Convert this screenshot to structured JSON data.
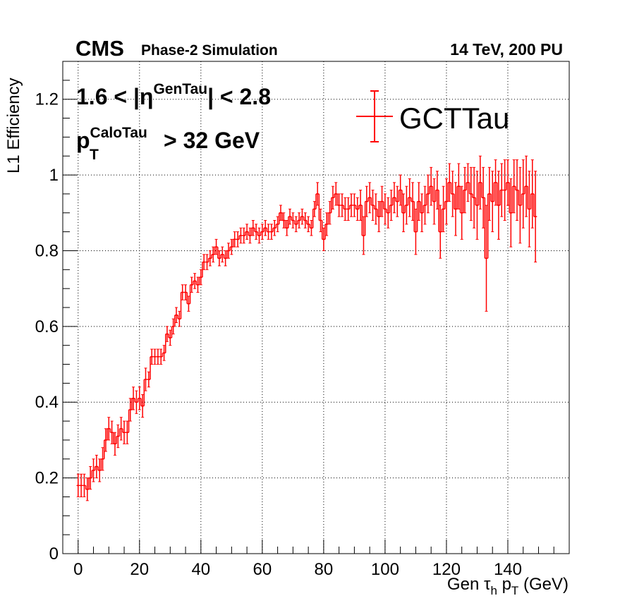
{
  "header": {
    "experiment": "CMS",
    "status": "Phase-2 Simulation",
    "conditions": "14 TeV, 200 PU"
  },
  "annotations": {
    "eta_prefix": "1.6 < |η",
    "eta_sup": "GenTau",
    "eta_suffix": "| < 2.8",
    "pt_main": "p",
    "pt_sup": "CaloTau",
    "pt_sub": "T",
    "pt_suffix": "> 32 GeV"
  },
  "chart_data": {
    "type": "scatter",
    "xlabel": "Gen τh pT (GeV)",
    "ylabel": "L1 Efficiency",
    "xlim": [
      -5,
      160
    ],
    "ylim": [
      0,
      1.3
    ],
    "x_ticks": [
      0,
      20,
      40,
      60,
      80,
      100,
      120,
      140
    ],
    "y_ticks": [
      0,
      0.2,
      0.4,
      0.6,
      0.8,
      1,
      1.2
    ],
    "x_tick_labels": [
      "0",
      "20",
      "40",
      "60",
      "80",
      "100",
      "120",
      "140"
    ],
    "y_tick_labels": [
      "0",
      "0.2",
      "0.4",
      "0.6",
      "0.8",
      "1",
      "1.2"
    ],
    "grid": true,
    "legend_position": "top-right",
    "series": [
      {
        "name": "GCTTau",
        "color": "#ff0000",
        "x": [
          0,
          1,
          2,
          3,
          4,
          5,
          6,
          7,
          8,
          9,
          10,
          11,
          12,
          13,
          14,
          15,
          16,
          17,
          18,
          19,
          20,
          21,
          22,
          23,
          24,
          25,
          26,
          27,
          28,
          29,
          30,
          31,
          32,
          33,
          34,
          35,
          36,
          37,
          38,
          39,
          40,
          41,
          42,
          43,
          44,
          45,
          46,
          47,
          48,
          49,
          50,
          51,
          52,
          53,
          54,
          55,
          56,
          57,
          58,
          59,
          60,
          61,
          62,
          63,
          64,
          65,
          66,
          67,
          68,
          69,
          70,
          71,
          72,
          73,
          74,
          75,
          76,
          77,
          78,
          79,
          80,
          81,
          82,
          83,
          84,
          85,
          86,
          87,
          88,
          89,
          90,
          91,
          92,
          93,
          94,
          95,
          96,
          97,
          98,
          99,
          100,
          101,
          102,
          103,
          104,
          105,
          106,
          107,
          108,
          109,
          110,
          111,
          112,
          113,
          114,
          115,
          116,
          117,
          118,
          119,
          120,
          121,
          122,
          123,
          124,
          125,
          126,
          127,
          128,
          129,
          130,
          131,
          132,
          133,
          134,
          135,
          136,
          137,
          138,
          139,
          140,
          141,
          142,
          143,
          144,
          145,
          146,
          147,
          148,
          149
        ],
        "y": [
          0.18,
          0.18,
          0.18,
          0.17,
          0.2,
          0.22,
          0.23,
          0.22,
          0.25,
          0.3,
          0.33,
          0.32,
          0.29,
          0.31,
          0.33,
          0.32,
          0.32,
          0.38,
          0.41,
          0.4,
          0.41,
          0.39,
          0.46,
          0.46,
          0.52,
          0.52,
          0.52,
          0.52,
          0.53,
          0.58,
          0.57,
          0.6,
          0.63,
          0.62,
          0.69,
          0.69,
          0.66,
          0.71,
          0.72,
          0.71,
          0.73,
          0.77,
          0.77,
          0.78,
          0.79,
          0.81,
          0.78,
          0.79,
          0.78,
          0.8,
          0.81,
          0.83,
          0.83,
          0.84,
          0.84,
          0.85,
          0.84,
          0.86,
          0.85,
          0.84,
          0.85,
          0.86,
          0.85,
          0.85,
          0.86,
          0.87,
          0.9,
          0.88,
          0.86,
          0.89,
          0.88,
          0.87,
          0.88,
          0.89,
          0.88,
          0.87,
          0.86,
          0.91,
          0.95,
          0.88,
          0.83,
          0.87,
          0.9,
          0.94,
          0.95,
          0.92,
          0.92,
          0.91,
          0.91,
          0.92,
          0.92,
          0.91,
          0.92,
          0.84,
          0.93,
          0.94,
          0.92,
          0.91,
          0.89,
          0.93,
          0.91,
          0.9,
          0.92,
          0.94,
          0.93,
          0.96,
          0.9,
          0.92,
          0.94,
          0.93,
          0.85,
          0.93,
          0.9,
          0.92,
          0.95,
          0.97,
          0.93,
          0.96,
          0.85,
          0.91,
          0.93,
          0.98,
          0.95,
          0.91,
          0.97,
          0.9,
          0.96,
          0.98,
          0.95,
          0.94,
          0.92,
          0.98,
          0.94,
          0.78,
          0.95,
          0.93,
          0.98,
          0.92,
          0.96,
          0.96,
          0.98,
          0.9,
          0.97,
          0.96,
          0.92,
          0.95,
          0.97,
          0.91,
          0.95,
          0.89
        ],
        "yerr": [
          0.03,
          0.03,
          0.03,
          0.03,
          0.03,
          0.03,
          0.03,
          0.03,
          0.03,
          0.03,
          0.03,
          0.03,
          0.03,
          0.03,
          0.03,
          0.03,
          0.03,
          0.03,
          0.03,
          0.03,
          0.03,
          0.03,
          0.03,
          0.02,
          0.02,
          0.02,
          0.02,
          0.02,
          0.02,
          0.02,
          0.02,
          0.02,
          0.02,
          0.02,
          0.02,
          0.02,
          0.02,
          0.02,
          0.02,
          0.02,
          0.02,
          0.02,
          0.02,
          0.02,
          0.02,
          0.02,
          0.02,
          0.02,
          0.02,
          0.02,
          0.02,
          0.02,
          0.02,
          0.02,
          0.02,
          0.02,
          0.02,
          0.02,
          0.02,
          0.02,
          0.02,
          0.02,
          0.02,
          0.02,
          0.02,
          0.02,
          0.02,
          0.02,
          0.02,
          0.02,
          0.02,
          0.02,
          0.02,
          0.02,
          0.02,
          0.02,
          0.02,
          0.02,
          0.03,
          0.03,
          0.03,
          0.03,
          0.03,
          0.03,
          0.03,
          0.03,
          0.03,
          0.03,
          0.03,
          0.03,
          0.03,
          0.03,
          0.04,
          0.05,
          0.04,
          0.04,
          0.04,
          0.04,
          0.04,
          0.04,
          0.04,
          0.04,
          0.04,
          0.04,
          0.04,
          0.04,
          0.05,
          0.05,
          0.05,
          0.05,
          0.06,
          0.05,
          0.05,
          0.05,
          0.05,
          0.05,
          0.06,
          0.05,
          0.07,
          0.06,
          0.06,
          0.05,
          0.06,
          0.07,
          0.06,
          0.07,
          0.06,
          0.05,
          0.07,
          0.08,
          0.09,
          0.07,
          0.08,
          0.14,
          0.07,
          0.08,
          0.06,
          0.09,
          0.07,
          0.08,
          0.06,
          0.09,
          0.07,
          0.08,
          0.1,
          0.09,
          0.08,
          0.1,
          0.09,
          0.12
        ]
      }
    ]
  }
}
